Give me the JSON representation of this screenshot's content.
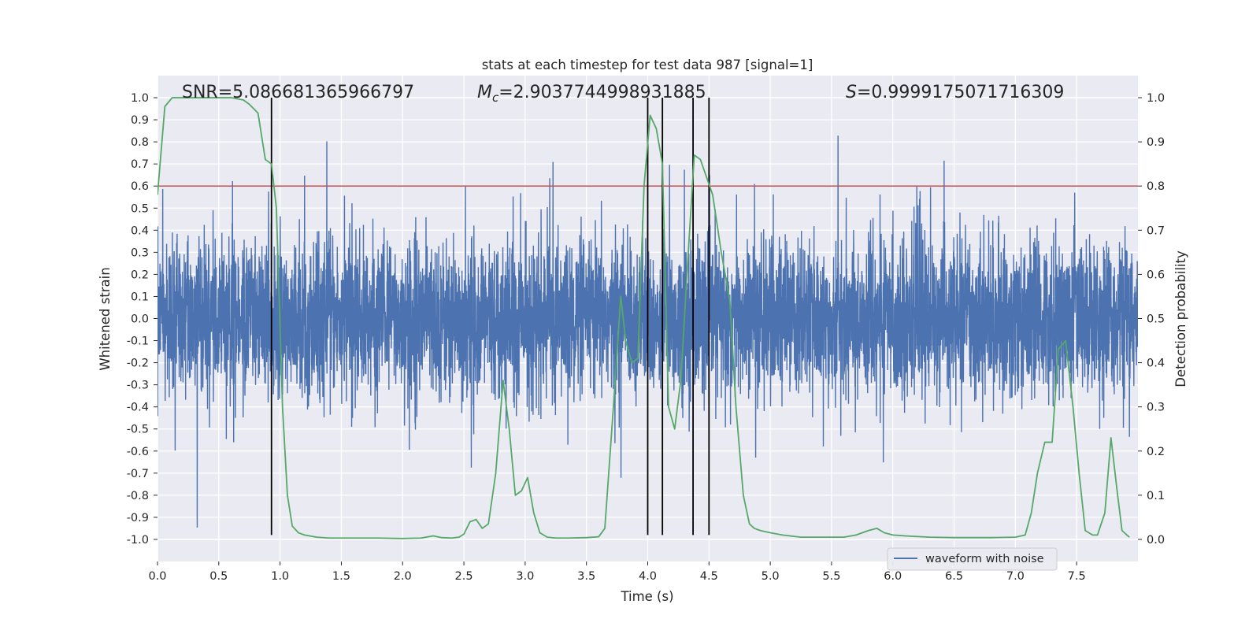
{
  "chart_data": {
    "type": "line",
    "title": "stats at each timestep for test data 987 [signal=1]",
    "xlabel": "Time (s)",
    "ylabel_left": "Whitened strain",
    "ylabel_right": "Detection probability",
    "xlim": [
      0.0,
      8.0
    ],
    "ylim_left": [
      -1.1,
      1.1
    ],
    "ylim_right": [
      -0.05,
      1.05
    ],
    "xticks": [
      "0.0",
      "0.5",
      "1.0",
      "1.5",
      "2.0",
      "2.5",
      "3.0",
      "3.5",
      "4.0",
      "4.5",
      "5.0",
      "5.5",
      "6.0",
      "6.5",
      "7.0",
      "7.5"
    ],
    "yticks_left": [
      "-1.0",
      "-0.9",
      "-0.8",
      "-0.7",
      "-0.6",
      "-0.5",
      "-0.4",
      "-0.3",
      "-0.2",
      "-0.1",
      "0.0",
      "0.1",
      "0.2",
      "0.3",
      "0.4",
      "0.5",
      "0.6",
      "0.7",
      "0.8",
      "0.9",
      "1.0"
    ],
    "yticks_right": [
      "0.0",
      "0.1",
      "0.2",
      "0.3",
      "0.4",
      "0.5",
      "0.6",
      "0.7",
      "0.8",
      "0.9",
      "1.0"
    ],
    "grid": true,
    "annotations": {
      "snr": "SNR=5.086681365966797",
      "mc_symbol": "M",
      "mc_sub": "c",
      "mc_value": "=2.9037744998931885",
      "s_symbol": "S",
      "s_value": "=0.9999175071716309"
    },
    "threshold": {
      "value": 0.8,
      "axis": "right",
      "color": "#c44e52"
    },
    "vertical_lines": [
      0.93,
      4.0,
      4.12,
      4.37,
      4.5
    ],
    "legend": {
      "entries": [
        "waveform with noise"
      ],
      "position": "lower-right"
    },
    "waveform": {
      "name": "waveform with noise",
      "color": "#4c72b0",
      "description": "noisy whitened strain, dense band roughly -0.4 to 0.4 with spikes reaching -1.0 to 1.0"
    },
    "probability_series": {
      "name": "detection probability",
      "color": "#55a868",
      "x": [
        0.0,
        0.06,
        0.12,
        0.2,
        0.3,
        0.4,
        0.5,
        0.6,
        0.7,
        0.75,
        0.82,
        0.88,
        0.93,
        0.97,
        1.02,
        1.06,
        1.1,
        1.15,
        1.2,
        1.3,
        1.4,
        1.6,
        1.8,
        2.0,
        2.15,
        2.25,
        2.32,
        2.4,
        2.46,
        2.5,
        2.55,
        2.6,
        2.65,
        2.7,
        2.76,
        2.82,
        2.87,
        2.92,
        2.97,
        3.02,
        3.07,
        3.12,
        3.18,
        3.25,
        3.35,
        3.5,
        3.6,
        3.65,
        3.72,
        3.78,
        3.82,
        3.87,
        3.92,
        3.97,
        4.02,
        4.07,
        4.12,
        4.17,
        4.22,
        4.27,
        4.32,
        4.38,
        4.43,
        4.48,
        4.53,
        4.6,
        4.67,
        4.72,
        4.78,
        4.83,
        4.87,
        4.92,
        5.0,
        5.1,
        5.25,
        5.4,
        5.6,
        5.7,
        5.8,
        5.87,
        5.93,
        6.0,
        6.1,
        6.3,
        6.5,
        6.8,
        7.0,
        7.08,
        7.13,
        7.18,
        7.24,
        7.3,
        7.35,
        7.41,
        7.47,
        7.52,
        7.57,
        7.63,
        7.67,
        7.73,
        7.78,
        7.83,
        7.87,
        7.93
      ],
      "y": [
        0.78,
        0.98,
        1.0,
        1.0,
        1.0,
        1.0,
        1.0,
        1.0,
        0.995,
        0.985,
        0.965,
        0.86,
        0.85,
        0.75,
        0.3,
        0.1,
        0.03,
        0.015,
        0.01,
        0.005,
        0.003,
        0.003,
        0.003,
        0.002,
        0.003,
        0.008,
        0.004,
        0.003,
        0.005,
        0.012,
        0.04,
        0.045,
        0.025,
        0.035,
        0.15,
        0.36,
        0.25,
        0.1,
        0.11,
        0.14,
        0.06,
        0.015,
        0.005,
        0.003,
        0.003,
        0.004,
        0.006,
        0.025,
        0.3,
        0.55,
        0.45,
        0.4,
        0.41,
        0.8,
        0.96,
        0.93,
        0.85,
        0.3,
        0.25,
        0.36,
        0.6,
        0.87,
        0.86,
        0.82,
        0.78,
        0.65,
        0.54,
        0.3,
        0.1,
        0.035,
        0.025,
        0.02,
        0.015,
        0.01,
        0.005,
        0.005,
        0.005,
        0.01,
        0.02,
        0.025,
        0.015,
        0.01,
        0.008,
        0.005,
        0.004,
        0.004,
        0.005,
        0.01,
        0.06,
        0.15,
        0.22,
        0.22,
        0.43,
        0.45,
        0.3,
        0.15,
        0.02,
        0.01,
        0.01,
        0.06,
        0.23,
        0.11,
        0.02,
        0.005
      ],
      "note": "series values are on the right axis (detection probability)"
    }
  }
}
